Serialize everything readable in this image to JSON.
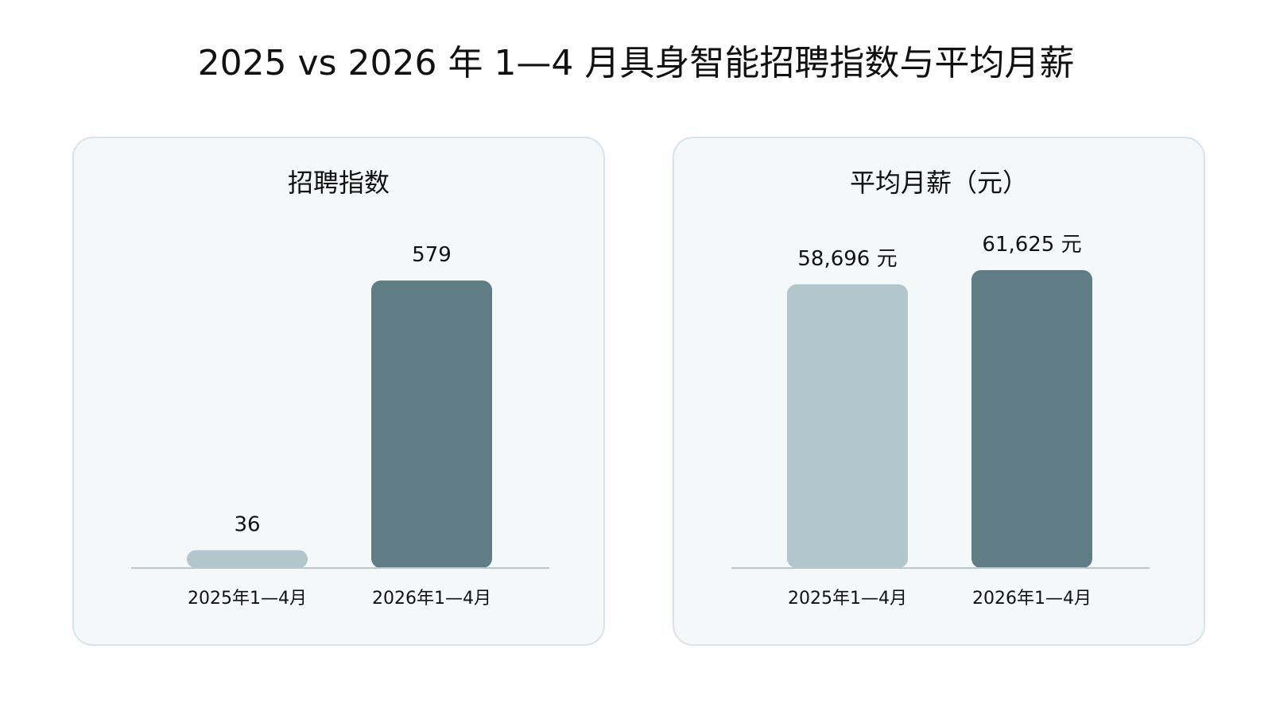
{
  "title": "2025 vs 2026 年 1—4 月具身智能招聘指数与平均月薪",
  "chart_data": [
    {
      "type": "bar",
      "title": "招聘指数",
      "categories": [
        "2025年1—4月",
        "2026年1—4月"
      ],
      "values": [
        36,
        579
      ],
      "value_labels": [
        "36",
        "579"
      ],
      "ylim": [
        0,
        600
      ],
      "colors": [
        "#b1c7cb",
        "#607d86"
      ],
      "grid": false
    },
    {
      "type": "bar",
      "title": "平均月薪（元）",
      "categories": [
        "2025年1—4月",
        "2026年1—4月"
      ],
      "values": [
        58696,
        61625
      ],
      "value_labels": [
        "58,696 元",
        "61,625 元"
      ],
      "ylim": [
        0,
        61625
      ],
      "colors": [
        "#b1c7cb",
        "#607d86"
      ],
      "grid": false
    }
  ]
}
